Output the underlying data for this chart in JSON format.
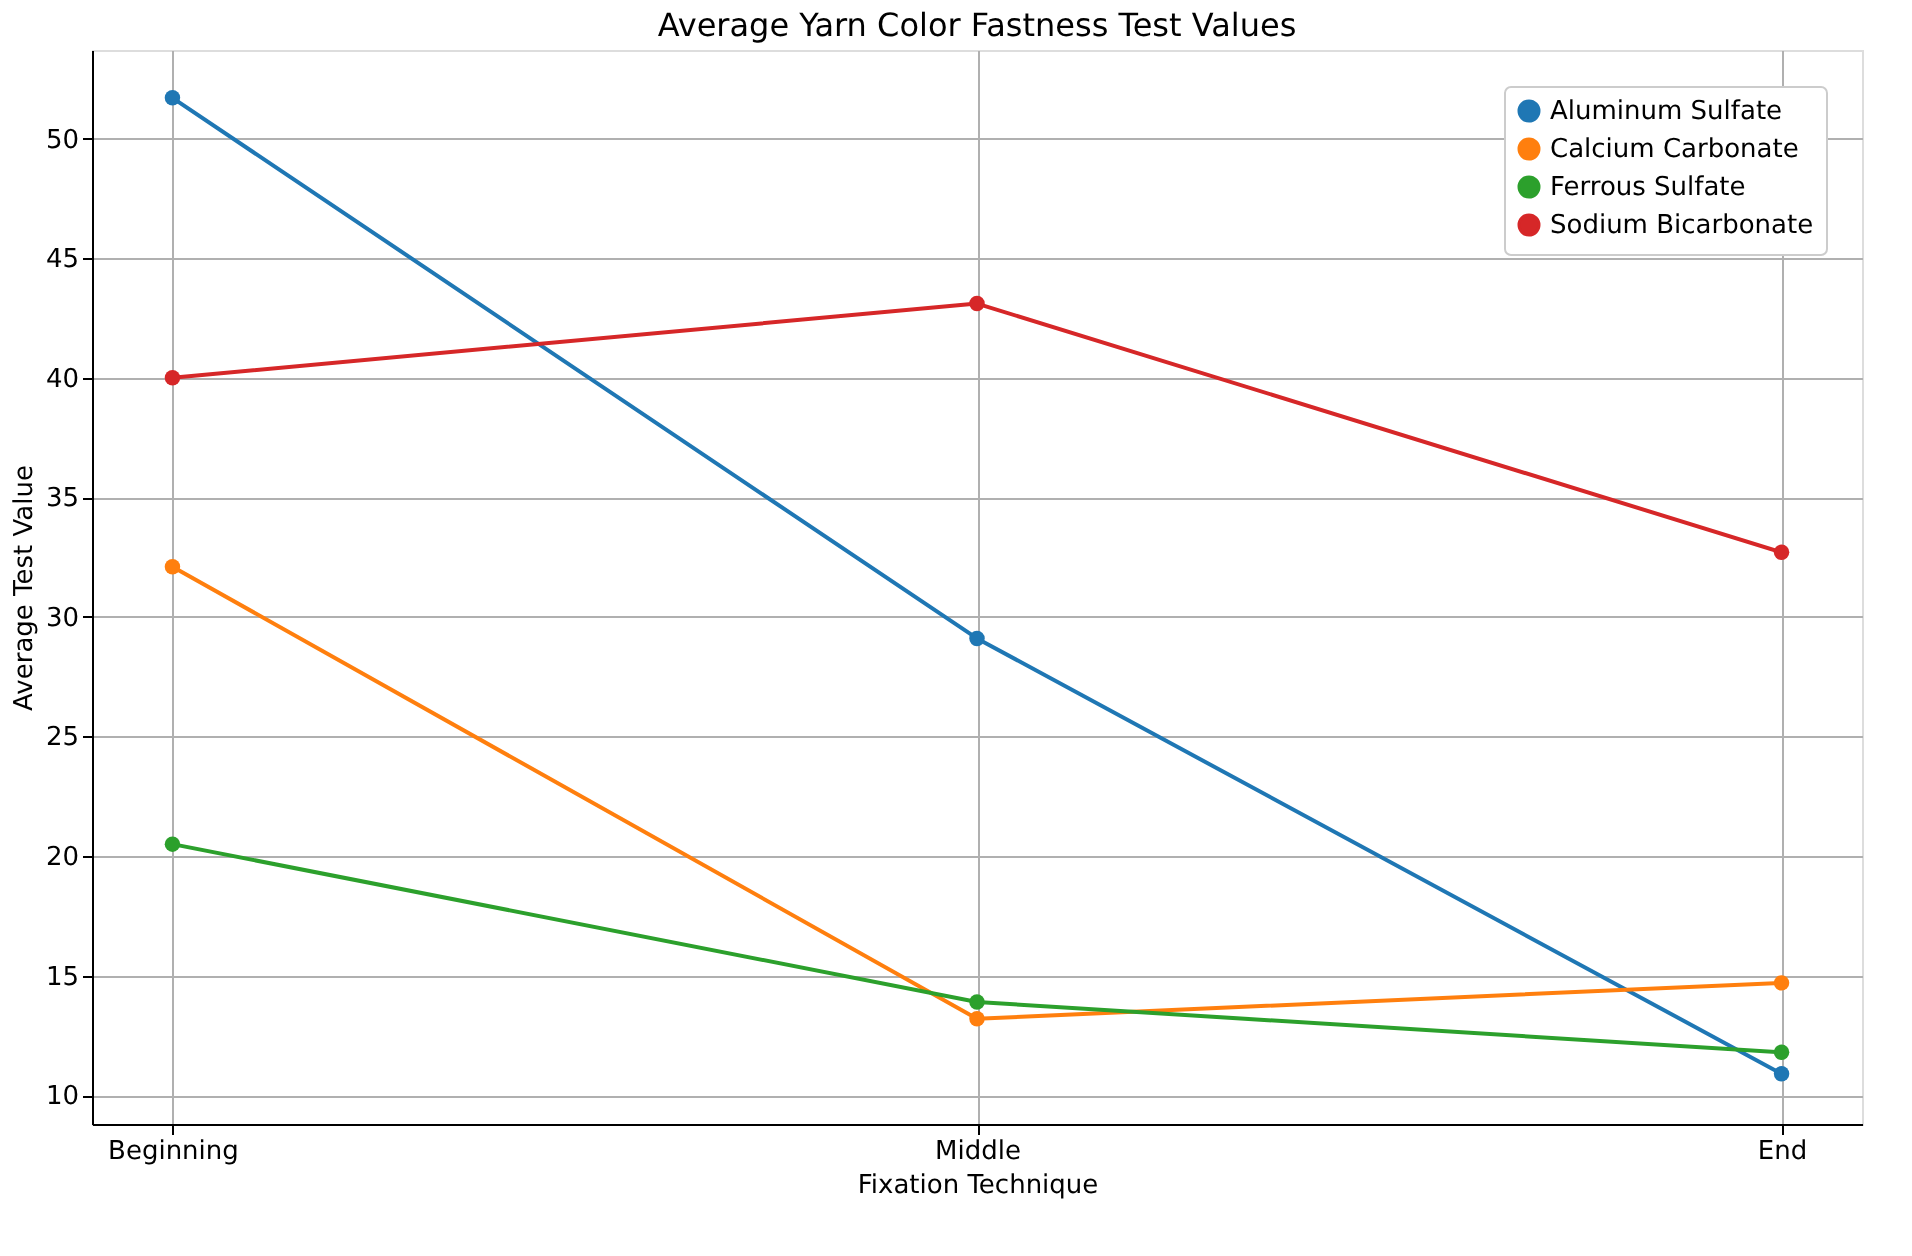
{
  "chart_data": {
    "type": "line",
    "title": "Average Yarn Color Fastness Test Values",
    "xlabel": "Fixation Technique",
    "ylabel": "Average Test Value",
    "categories": [
      "Beginning",
      "Middle",
      "End"
    ],
    "series": [
      {
        "name": "Aluminum Sulfate",
        "color": "#1f77b4",
        "values": [
          51.7,
          29.1,
          10.9
        ]
      },
      {
        "name": "Calcium Carbonate",
        "color": "#ff7f0e",
        "values": [
          32.1,
          13.2,
          14.7
        ]
      },
      {
        "name": "Ferrous Sulfate",
        "color": "#2ca02c",
        "values": [
          20.5,
          13.9,
          11.8
        ]
      },
      {
        "name": "Sodium Bicarbonate",
        "color": "#d62728",
        "values": [
          40.0,
          43.1,
          32.7
        ]
      }
    ],
    "ylim": [
      8.8,
      53.7
    ],
    "yticks": [
      10,
      15,
      20,
      25,
      30,
      35,
      40,
      45,
      50
    ],
    "grid": true,
    "legend": "top right",
    "marker": "circle",
    "line_style": "solid"
  }
}
